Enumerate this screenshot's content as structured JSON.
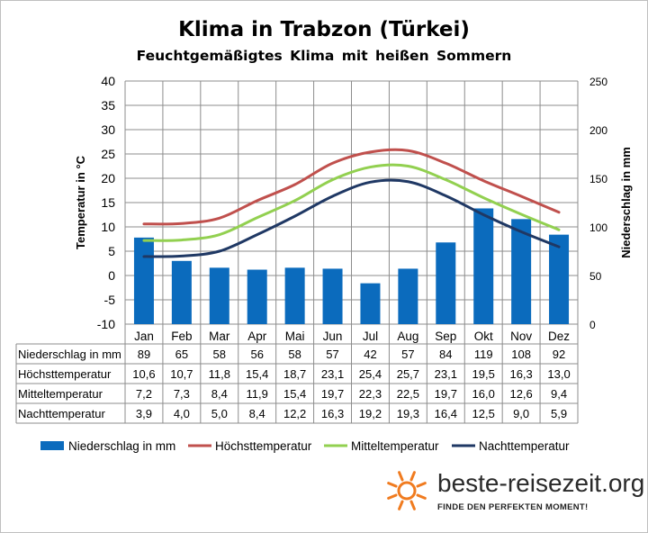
{
  "title": "Klima in Trabzon (Türkei)",
  "subtitle": "Feuchtgemäßigtes Klima mit heißen Sommern",
  "chart_data": {
    "type": "bar+line",
    "categories": [
      "Jan",
      "Feb",
      "Mar",
      "Apr",
      "Mai",
      "Jun",
      "Jul",
      "Aug",
      "Sep",
      "Okt",
      "Nov",
      "Dez"
    ],
    "left_axis": {
      "label": "Temperatur in °C",
      "min": -10,
      "max": 40,
      "step": 5
    },
    "right_axis": {
      "label": "Niederschlag in mm",
      "min": 0,
      "max": 250,
      "step": 50
    },
    "grid": true,
    "legend_position": "bottom",
    "series": [
      {
        "name": "Niederschlag in mm",
        "kind": "bar",
        "axis": "right",
        "color": "#0b6bbd",
        "values": [
          89,
          65,
          58,
          56,
          58,
          57,
          42,
          57,
          84,
          119,
          108,
          92
        ]
      },
      {
        "name": "Höchsttemperatur",
        "kind": "line",
        "axis": "left",
        "color": "#c0504d",
        "values": [
          10.6,
          10.7,
          11.8,
          15.4,
          18.7,
          23.1,
          25.4,
          25.7,
          23.1,
          19.5,
          16.3,
          13.0
        ]
      },
      {
        "name": "Mitteltemperatur",
        "kind": "line",
        "axis": "left",
        "color": "#92d050",
        "values": [
          7.2,
          7.3,
          8.4,
          11.9,
          15.4,
          19.7,
          22.3,
          22.5,
          19.7,
          16.0,
          12.6,
          9.4
        ]
      },
      {
        "name": "Nachttemperatur",
        "kind": "line",
        "axis": "left",
        "color": "#1f3864",
        "values": [
          3.9,
          4.0,
          5.0,
          8.4,
          12.2,
          16.3,
          19.2,
          19.3,
          16.4,
          12.5,
          9.0,
          5.9
        ]
      }
    ],
    "table_rows": [
      {
        "label": "Niederschlag in mm",
        "cells": [
          "89",
          "65",
          "58",
          "56",
          "58",
          "57",
          "42",
          "57",
          "84",
          "119",
          "108",
          "92"
        ]
      },
      {
        "label": "Höchsttemperatur",
        "cells": [
          "10,6",
          "10,7",
          "11,8",
          "15,4",
          "18,7",
          "23,1",
          "25,4",
          "25,7",
          "23,1",
          "19,5",
          "16,3",
          "13,0"
        ]
      },
      {
        "label": "Mitteltemperatur",
        "cells": [
          "7,2",
          "7,3",
          "8,4",
          "11,9",
          "15,4",
          "19,7",
          "22,3",
          "22,5",
          "19,7",
          "16,0",
          "12,6",
          "9,4"
        ]
      },
      {
        "label": "Nachttemperatur",
        "cells": [
          "3,9",
          "4,0",
          "5,0",
          "8,4",
          "12,2",
          "16,3",
          "19,2",
          "19,3",
          "16,4",
          "12,5",
          "9,0",
          "5,9"
        ]
      }
    ]
  },
  "logo": {
    "brand": "beste-reisezeit.org",
    "tagline": "FINDE DEN PERFEKTEN MOMENT!",
    "sun_color": "#f07b1f",
    "icon": "sun-icon"
  }
}
